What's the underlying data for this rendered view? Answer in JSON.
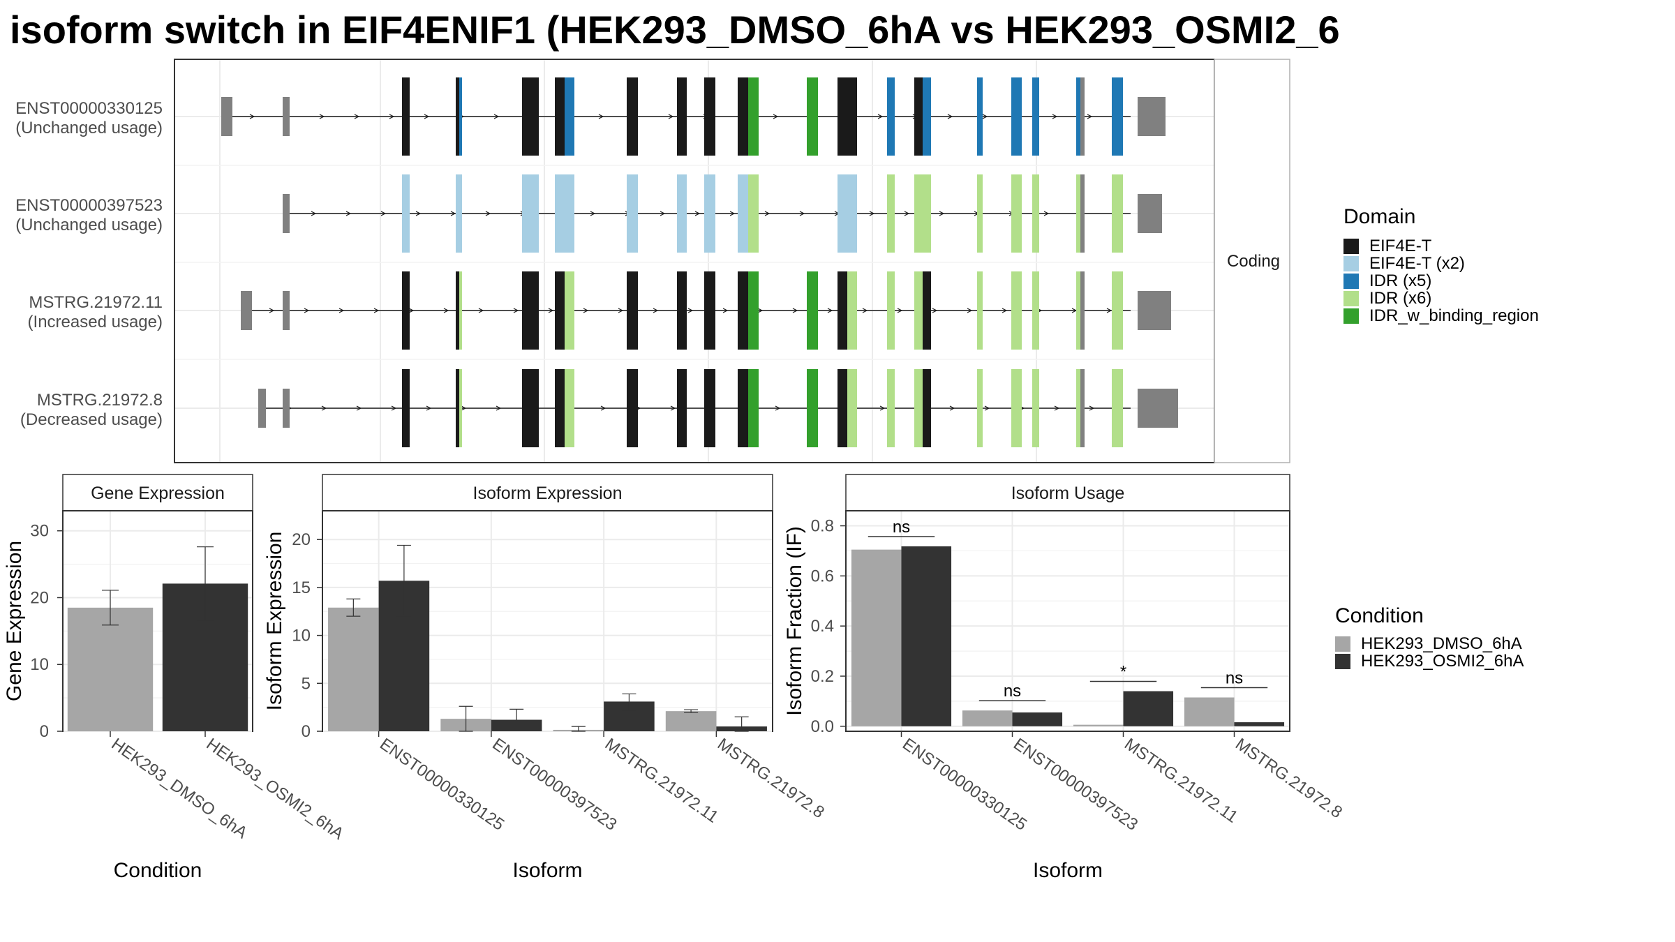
{
  "title": "isoform switch in EIF4ENIF1 (HEK293_DMSO_6hA vs HEK293_OSMI2_6",
  "colors": {
    "EIF4E-T": "#1a1a1a",
    "EIF4E-T (x2)": "#a6cee3",
    "IDR (x5)": "#1f78b4",
    "IDR (x6)": "#b2df8a",
    "IDR_w_binding_region": "#33a02c",
    "utr": "#808080",
    "dmso": "#a6a6a6",
    "osmi": "#333333"
  },
  "structure": {
    "strip_label": "Coding",
    "legend_title": "Domain",
    "legend_items": [
      "EIF4E-T",
      "EIF4E-T (x2)",
      "IDR (x5)",
      "IDR (x6)",
      "IDR_w_binding_region"
    ],
    "transcripts": [
      {
        "name": "ENST00000330125",
        "status": "(Unchanged usage)",
        "profile": "A"
      },
      {
        "name": "ENST00000397523",
        "status": "(Unchanged usage)",
        "profile": "B"
      },
      {
        "name": "MSTRG.21972.11",
        "status": "(Increased usage)",
        "profile": "C"
      },
      {
        "name": "MSTRG.21972.8",
        "status": "(Decreased usage)",
        "profile": "D"
      }
    ]
  },
  "condition_legend": {
    "title": "Condition",
    "items": [
      "HEK293_DMSO_6hA",
      "HEK293_OSMI2_6hA"
    ]
  },
  "chart_data": [
    {
      "type": "bar",
      "title": "Gene Expression",
      "xlabel": "Condition",
      "ylabel": "Gene Expression",
      "ylim": [
        0,
        33
      ],
      "yticks": [
        0,
        10,
        20,
        30
      ],
      "categories": [
        "HEK293_DMSO_6hA",
        "HEK293_OSMI2_6hA"
      ],
      "values": [
        18.5,
        22.1
      ],
      "errors": [
        [
          15.9,
          21.1
        ],
        [
          16.6,
          27.6
        ]
      ]
    },
    {
      "type": "bar",
      "title": "Isoform Expression",
      "xlabel": "Isoform",
      "ylabel": "Isoform Expression",
      "ylim": [
        0,
        23
      ],
      "yticks": [
        0,
        5,
        10,
        15,
        20
      ],
      "categories": [
        "ENST00000330125",
        "ENST00000397523",
        "MSTRG.21972.11",
        "MSTRG.21972.8"
      ],
      "series": [
        {
          "name": "HEK293_DMSO_6hA",
          "values": [
            12.9,
            1.3,
            0.15,
            2.1
          ],
          "errors": [
            [
              12.0,
              13.8
            ],
            [
              0.0,
              2.6
            ],
            [
              0.0,
              0.5
            ],
            [
              1.95,
              2.25
            ]
          ]
        },
        {
          "name": "HEK293_OSMI2_6hA",
          "values": [
            15.7,
            1.2,
            3.1,
            0.5
          ],
          "errors": [
            [
              12.0,
              19.4
            ],
            [
              0.1,
              2.3
            ],
            [
              2.2,
              3.9
            ],
            [
              0.0,
              1.5
            ]
          ]
        }
      ]
    },
    {
      "type": "bar",
      "title": "Isoform Usage",
      "xlabel": "Isoform",
      "ylabel": "Isoform Fraction (IF)",
      "ylim": [
        -0.02,
        0.86
      ],
      "yticks": [
        0.0,
        0.2,
        0.4,
        0.6,
        0.8
      ],
      "categories": [
        "ENST00000330125",
        "ENST00000397523",
        "MSTRG.21972.11",
        "MSTRG.21972.8"
      ],
      "series": [
        {
          "name": "HEK293_DMSO_6hA",
          "values": [
            0.705,
            0.063,
            0.006,
            0.115
          ]
        },
        {
          "name": "HEK293_OSMI2_6hA",
          "values": [
            0.718,
            0.055,
            0.14,
            0.016
          ]
        }
      ],
      "significance": [
        "ns",
        "ns",
        "*",
        "ns"
      ]
    }
  ]
}
